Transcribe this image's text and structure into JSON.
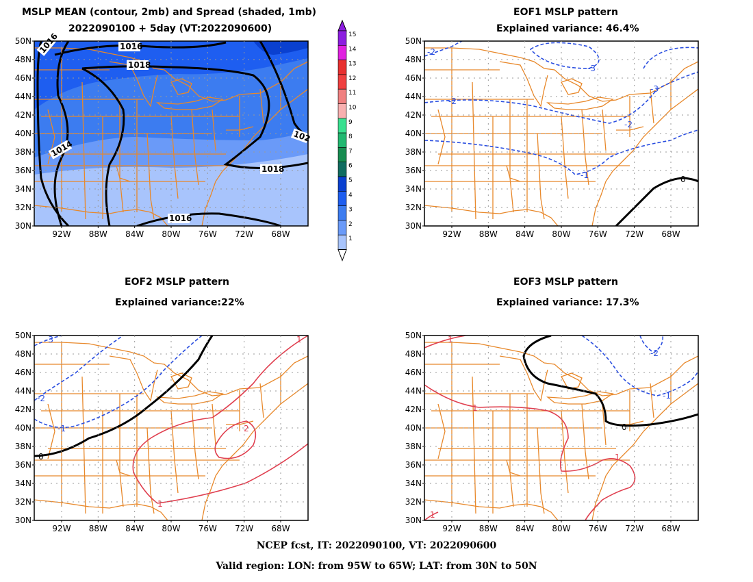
{
  "panel1": {
    "title_line1": "MSLP MEAN (contour, 2mb) and Spread (shaded, 1mb)",
    "title_line2": "2022090100 + 5day (VT:2022090600)",
    "contour_labels": [
      "1016",
      "1018",
      "1014",
      "1018",
      "1016",
      "1016",
      "102"
    ]
  },
  "panel2": {
    "title_line1": "EOF1 MSLP pattern",
    "title_line2": "Explained variance: 46.4%",
    "contour_labels": [
      "-2",
      "-3",
      "-3",
      "-2",
      "-2",
      "-1",
      "0"
    ]
  },
  "panel3": {
    "title_line1": "EOF2 MSLP pattern",
    "title_line2": "Explained variance:22%",
    "contour_labels": [
      "-3",
      "-2",
      "-1",
      "0",
      "1",
      "2",
      "1"
    ]
  },
  "panel4": {
    "title_line1": "EOF3 MSLP pattern",
    "title_line2": "Explained variance: 17.3%",
    "contour_labels": [
      "1",
      "1",
      "-2",
      "-1",
      "0",
      "1",
      "1"
    ]
  },
  "lat_labels": [
    "50N",
    "48N",
    "46N",
    "44N",
    "42N",
    "40N",
    "38N",
    "36N",
    "34N",
    "32N",
    "30N"
  ],
  "lon_labels": [
    "92W",
    "88W",
    "84W",
    "80W",
    "76W",
    "72W",
    "68W"
  ],
  "colorbar": {
    "labels": [
      "15",
      "14",
      "13",
      "12",
      "11",
      "10",
      "9",
      "8",
      "7",
      "6",
      "5",
      "4",
      "3",
      "2",
      "1"
    ],
    "colors": [
      "#8c1de0",
      "#e020e0",
      "#e83030",
      "#f04040",
      "#f08080",
      "#f8b0b0",
      "#38e090",
      "#20b870",
      "#168c50",
      "#106c60",
      "#0a40d0",
      "#1e5ef0",
      "#3c7cf0",
      "#6a9af8",
      "#a8c4fc"
    ]
  },
  "footer": {
    "line1": "NCEP fcst, IT: 2022090100, VT: 2022090600",
    "line2": "Valid region: LON: from 95W to 65W; LAT: from 30N to 50N"
  },
  "colors": {
    "state_lines": "#e8882a",
    "shade_light": "#a8c4fc",
    "shade_mid": "#6a9af8",
    "shade_dark": "#3c7cf0",
    "shade_darkest": "#1e5ef0",
    "positive": "#e04050",
    "negative": "#2a4ee0",
    "zero": "#000000"
  }
}
